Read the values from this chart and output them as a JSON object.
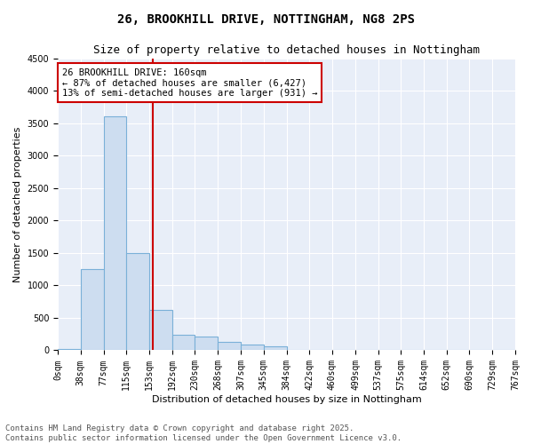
{
  "title_line1": "26, BROOKHILL DRIVE, NOTTINGHAM, NG8 2PS",
  "title_line2": "Size of property relative to detached houses in Nottingham",
  "xlabel": "Distribution of detached houses by size in Nottingham",
  "ylabel": "Number of detached properties",
  "annotation_line1": "26 BROOKHILL DRIVE: 160sqm",
  "annotation_line2": "← 87% of detached houses are smaller (6,427)",
  "annotation_line3": "13% of semi-detached houses are larger (931) →",
  "property_size": 160,
  "bar_color": "#cdddf0",
  "bar_edge_color": "#7ab0d8",
  "vline_color": "#cc0000",
  "annotation_box_color": "#cc0000",
  "background_color": "#e8eef8",
  "grid_color": "#ffffff",
  "categories": [
    "0sqm",
    "38sqm",
    "77sqm",
    "115sqm",
    "153sqm",
    "192sqm",
    "230sqm",
    "268sqm",
    "307sqm",
    "345sqm",
    "384sqm",
    "422sqm",
    "460sqm",
    "499sqm",
    "537sqm",
    "575sqm",
    "614sqm",
    "652sqm",
    "690sqm",
    "729sqm",
    "767sqm"
  ],
  "bin_edges": [
    0,
    38,
    77,
    115,
    153,
    192,
    230,
    268,
    307,
    345,
    384,
    422,
    460,
    499,
    537,
    575,
    614,
    652,
    690,
    729,
    767
  ],
  "values": [
    25,
    1250,
    3600,
    1500,
    620,
    240,
    215,
    130,
    90,
    55,
    10,
    0,
    0,
    0,
    0,
    0,
    10,
    0,
    0,
    0,
    0
  ],
  "ylim": [
    0,
    4500
  ],
  "yticks": [
    0,
    500,
    1000,
    1500,
    2000,
    2500,
    3000,
    3500,
    4000,
    4500
  ],
  "footer_line1": "Contains HM Land Registry data © Crown copyright and database right 2025.",
  "footer_line2": "Contains public sector information licensed under the Open Government Licence v3.0.",
  "title_fontsize": 10,
  "subtitle_fontsize": 9,
  "axis_label_fontsize": 8,
  "tick_fontsize": 7,
  "annotation_fontsize": 7.5,
  "footer_fontsize": 6.5
}
